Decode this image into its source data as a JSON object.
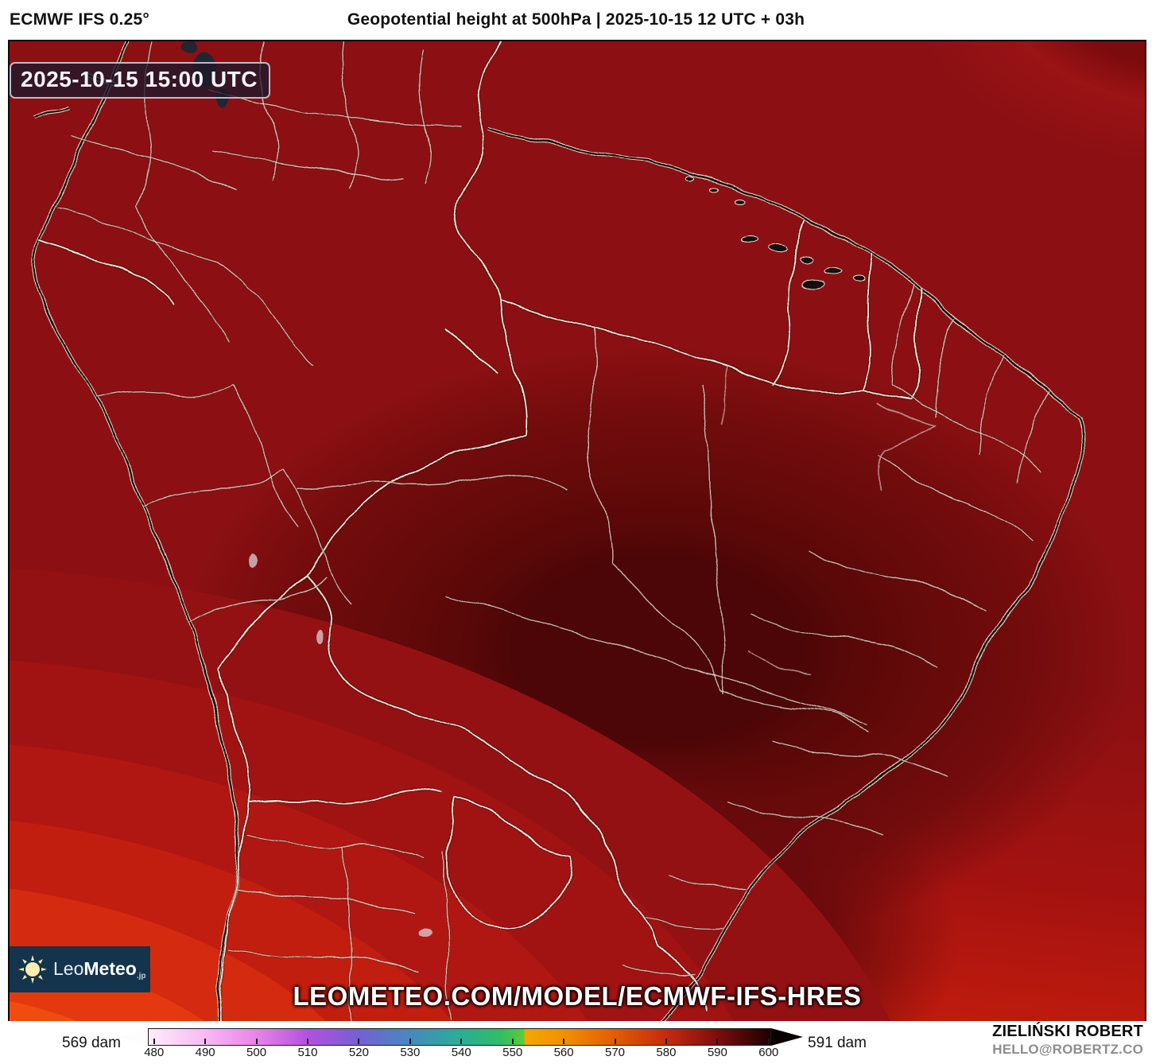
{
  "header": {
    "model": "ECMWF IFS 0.25°",
    "title": "Geopotential height at 500hPa | 2025-10-15 12 UTC + 03h"
  },
  "map": {
    "timestamp": "2025-10-15 15:00 UTC",
    "watermark": "LEOMETEO.COM/MODEL/ECMWF-IFS-HRES",
    "logo": {
      "leo": "Leo",
      "meteo": "Meteo",
      "suffix": "jp"
    }
  },
  "footer": {
    "min_label": "569 dam",
    "max_label": "591 dam",
    "author": "ZIELIŃSKI ROBERT",
    "contact": "HELLO@ROBERTZ.CO",
    "ticks": [
      "480",
      "490",
      "500",
      "510",
      "520",
      "530",
      "540",
      "550",
      "560",
      "570",
      "580",
      "590",
      "600"
    ],
    "scale": {
      "value_at_left": 478.8,
      "value_span": 121.7,
      "unit": "dam"
    },
    "colorbar_stops": [
      {
        "v": 475.0,
        "c": "#ffffff"
      },
      {
        "v": 480.0,
        "c": "#fde7fb"
      },
      {
        "v": 490.0,
        "c": "#f7b9f3"
      },
      {
        "v": 500.0,
        "c": "#e983e8"
      },
      {
        "v": 510.0,
        "c": "#b152df"
      },
      {
        "v": 520.0,
        "c": "#7460d4"
      },
      {
        "v": 530.0,
        "c": "#4689c0"
      },
      {
        "v": 540.0,
        "c": "#2bae93"
      },
      {
        "v": 548.0,
        "c": "#33bd62"
      },
      {
        "v": 552.3,
        "c": "#5ecb38"
      },
      {
        "v": 552.4,
        "c": "#f4a702"
      },
      {
        "v": 560.0,
        "c": "#f09101"
      },
      {
        "v": 570.0,
        "c": "#e25c04"
      },
      {
        "v": 580.0,
        "c": "#c62b0e"
      },
      {
        "v": 590.0,
        "c": "#7f0d0d"
      },
      {
        "v": 600.0,
        "c": "#200202"
      }
    ]
  },
  "colors": {
    "field_base_red": "#8c1013",
    "field_ridge_maroon": "#4d0607",
    "field_min_orange": "#ff8e2c",
    "field_bottom_red": "#cd210c",
    "border_light": "#ece1d4",
    "coastline_black": "#150b06",
    "logo_bg": "#14344d",
    "stamp_bg": "#1c182c"
  }
}
